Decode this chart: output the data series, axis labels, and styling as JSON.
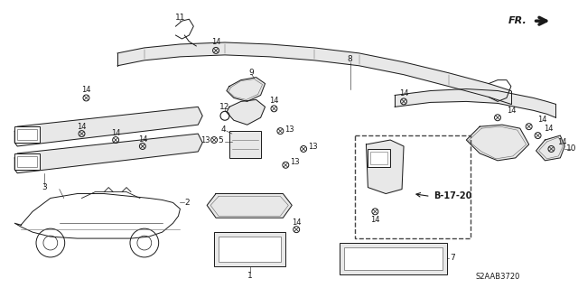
{
  "bg": "#ffffff",
  "dark": "#1a1a1a",
  "gray": "#666666",
  "lgray": "#aaaaaa",
  "fig_width": 6.4,
  "fig_height": 3.19,
  "dpi": 100,
  "diagram_code": "S2AAB3720",
  "ref_label": "B-17-20",
  "fr_label": "FR."
}
